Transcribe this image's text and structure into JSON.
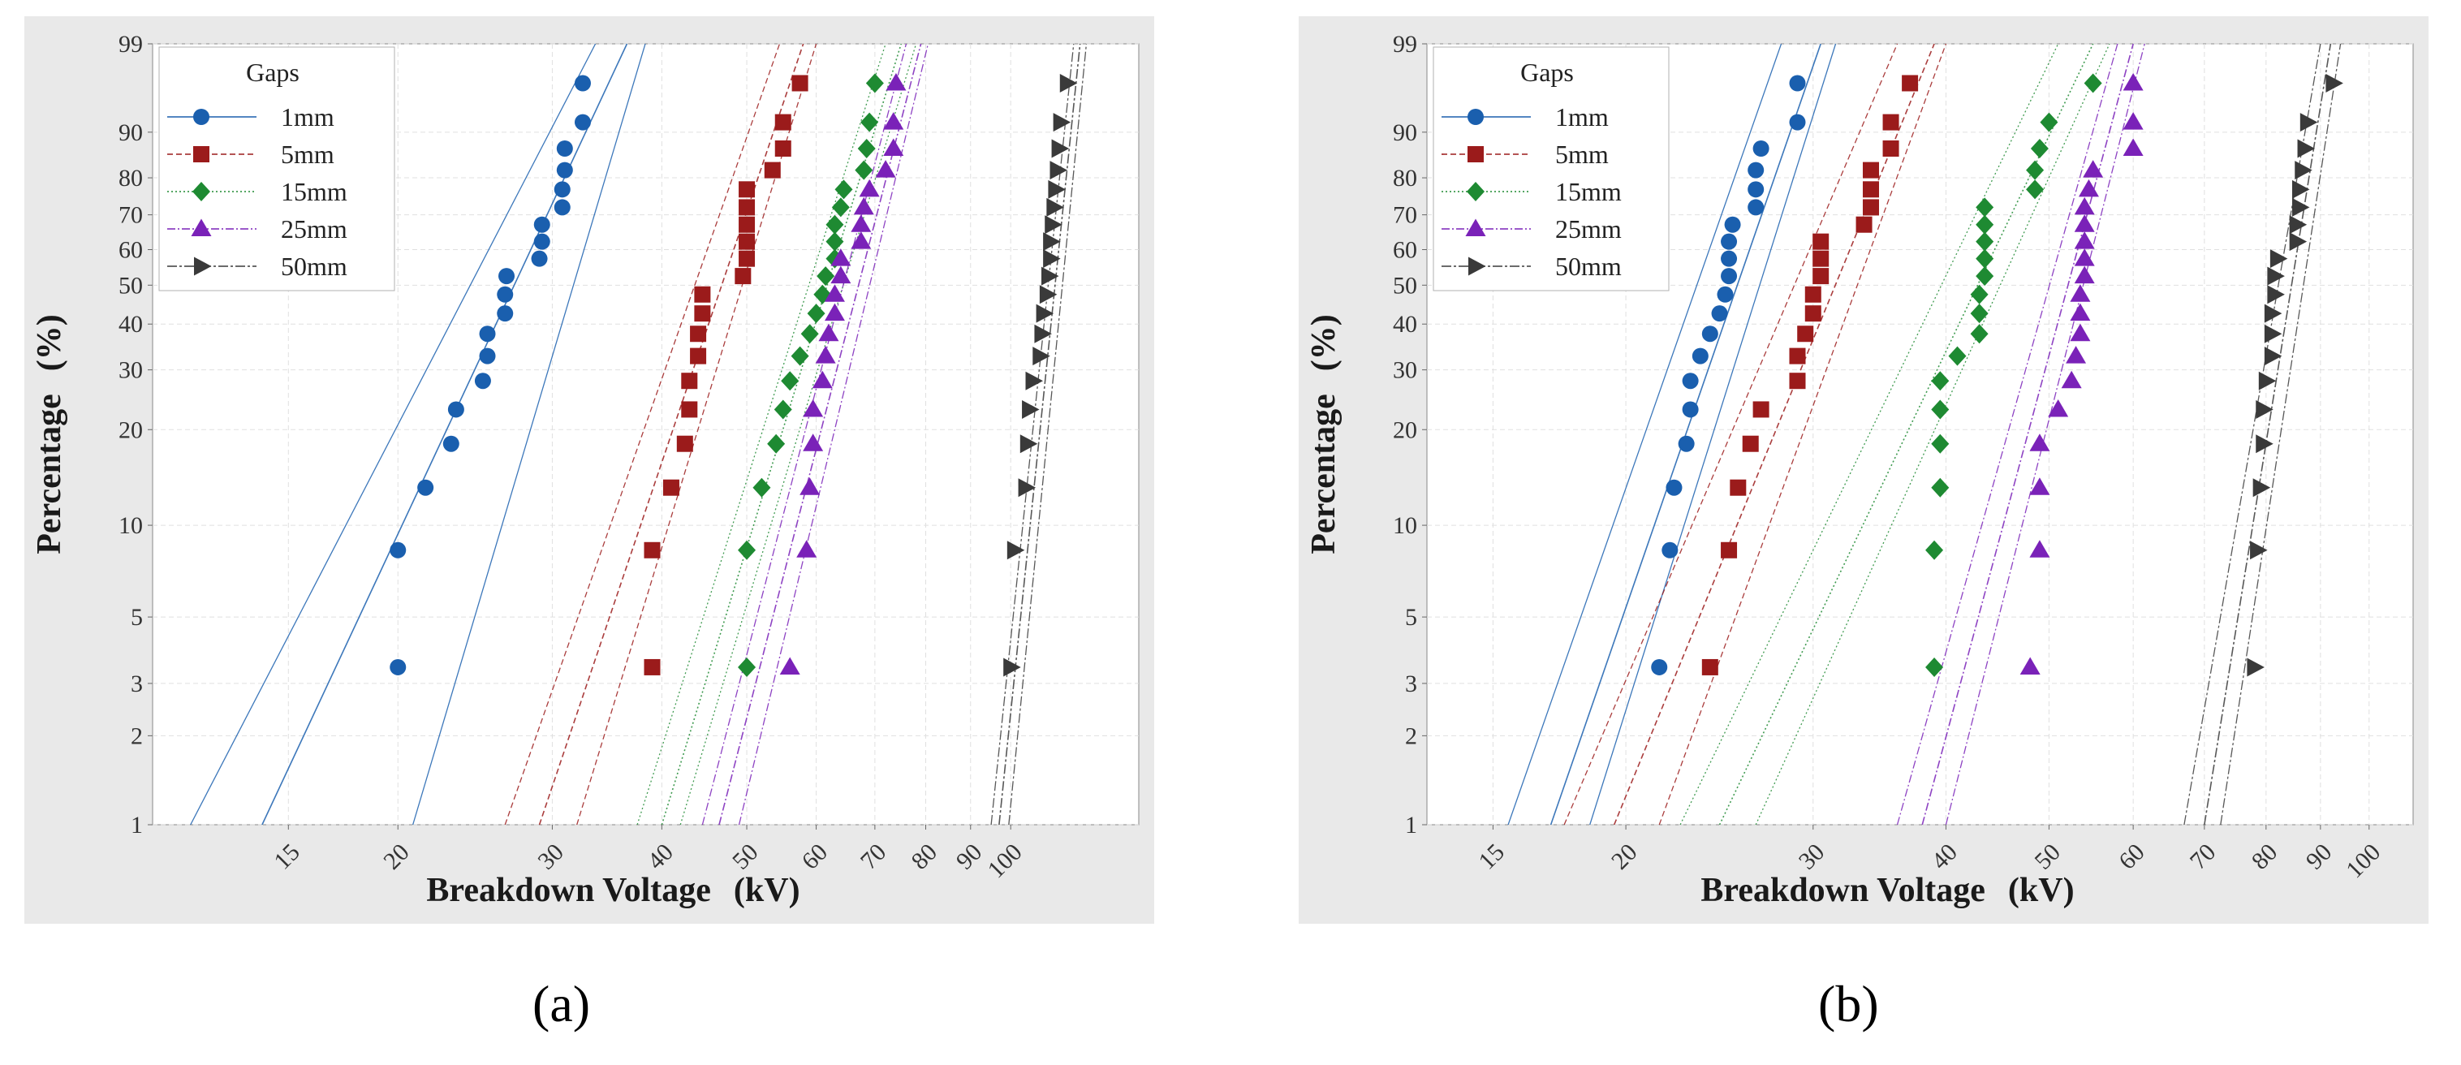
{
  "chart_data": [
    {
      "type": "scatter",
      "panel_label": "(a)",
      "xscale": "log",
      "yscale": "weibull-probability",
      "xlabel_main": "Breakdown Voltage",
      "xlabel_unit": "(kV)",
      "ylabel_main": "Percentage",
      "ylabel_unit": "(%)",
      "xlim": [
        10.5,
        140
      ],
      "ylim": [
        1,
        99
      ],
      "xticks": [
        15,
        20,
        30,
        40,
        50,
        60,
        70,
        80,
        90,
        100
      ],
      "xtick_labels": [
        "15",
        "20",
        "30",
        "40",
        "50",
        "60",
        "70",
        "80",
        "90",
        "100"
      ],
      "yticks": [
        1,
        2,
        3,
        5,
        10,
        20,
        30,
        40,
        50,
        60,
        70,
        80,
        90,
        99
      ],
      "ytick_labels": [
        "1",
        "2",
        "3",
        "5",
        "10",
        "20",
        "30",
        "40",
        "50",
        "60",
        "70",
        "80",
        "90",
        "99"
      ],
      "legend_title": "Gaps",
      "legend_position": "top-left",
      "series": [
        {
          "name": "1mm",
          "color": "#1a5fae",
          "marker": "circle",
          "dash": "",
          "x": [
            20.0,
            20.0,
            21.5,
            23.0,
            23.3,
            25.0,
            25.3,
            25.3,
            26.5,
            26.5,
            26.6,
            29.0,
            29.2,
            29.2,
            30.8,
            30.8,
            31.0,
            31.0,
            32.5,
            32.5
          ],
          "y": [
            3.4,
            8.3,
            13.2,
            18.1,
            23.0,
            27.9,
            32.8,
            37.7,
            42.6,
            47.5,
            52.5,
            57.4,
            62.3,
            67.2,
            72.1,
            77.0,
            81.9,
            86.8,
            91.7,
            96.6
          ],
          "fit": {
            "center": [
              [
                14.0,
                1
              ],
              [
                36.5,
                99
              ]
            ],
            "lower": [
              [
                11.6,
                1
              ],
              [
                33.6,
                99
              ]
            ],
            "upper": [
              [
                20.8,
                1
              ],
              [
                38.3,
                99
              ]
            ]
          }
        },
        {
          "name": "5mm",
          "color": "#9b1b1b",
          "marker": "square",
          "dash": "7,4",
          "x": [
            39.0,
            39.0,
            41.0,
            42.5,
            43.0,
            43.0,
            44.0,
            44.0,
            44.5,
            44.5,
            49.5,
            50.0,
            50.0,
            50.0,
            50.0,
            50.0,
            53.5,
            55.0,
            55.0,
            57.5
          ],
          "y": [
            3.4,
            8.3,
            13.2,
            18.1,
            23.0,
            27.9,
            32.8,
            37.7,
            42.6,
            47.5,
            52.5,
            57.4,
            62.3,
            67.2,
            72.1,
            77.0,
            81.9,
            86.8,
            91.7,
            96.6
          ],
          "fit": {
            "center": [
              [
                29.0,
                1
              ],
              [
                58.0,
                99
              ]
            ],
            "lower": [
              [
                26.5,
                1
              ],
              [
                54.5,
                99
              ]
            ],
            "upper": [
              [
                32.0,
                1
              ],
              [
                60.0,
                99
              ]
            ]
          }
        },
        {
          "name": "15mm",
          "color": "#1e8a32",
          "marker": "diamond",
          "dash": "2,3",
          "x": [
            50.0,
            50.0,
            52.0,
            54.0,
            55.0,
            56.0,
            57.5,
            59.0,
            60.0,
            61.0,
            61.5,
            63.0,
            63.0,
            63.0,
            64.0,
            64.5,
            68.0,
            68.5,
            69.0,
            70.0
          ],
          "y": [
            3.4,
            8.3,
            13.2,
            18.1,
            23.0,
            27.9,
            32.8,
            37.7,
            42.6,
            47.5,
            52.5,
            57.4,
            62.3,
            67.2,
            72.1,
            77.0,
            81.9,
            86.8,
            91.7,
            96.6
          ],
          "fit": {
            "center": [
              [
                40.0,
                1
              ],
              [
                75.0,
                99
              ]
            ],
            "lower": [
              [
                37.5,
                1
              ],
              [
                72.0,
                99
              ]
            ],
            "upper": [
              [
                42.0,
                1
              ],
              [
                78.0,
                99
              ]
            ]
          }
        },
        {
          "name": "25mm",
          "color": "#7a22b8",
          "marker": "triangle-up",
          "dash": "10,3,2,3",
          "x": [
            56.0,
            58.5,
            59.0,
            59.5,
            59.5,
            61.0,
            61.5,
            62.0,
            63.0,
            63.0,
            64.0,
            64.0,
            67.5,
            67.5,
            68.0,
            69.0,
            72.0,
            73.5,
            73.5,
            74.0
          ],
          "y": [
            3.4,
            8.3,
            13.2,
            18.1,
            23.0,
            27.9,
            32.8,
            37.7,
            42.6,
            47.5,
            52.5,
            57.4,
            62.3,
            67.2,
            72.1,
            77.0,
            81.9,
            86.8,
            91.7,
            96.6
          ],
          "fit": {
            "center": [
              [
                46.5,
                1
              ],
              [
                79.0,
                99
              ]
            ],
            "lower": [
              [
                44.5,
                1
              ],
              [
                76.0,
                99
              ]
            ],
            "upper": [
              [
                49.0,
                1
              ],
              [
                80.5,
                99
              ]
            ]
          }
        },
        {
          "name": "50mm",
          "color": "#3a3a3a",
          "marker": "triangle-right",
          "dash": "12,3,3,3",
          "x": [
            100.0,
            101.0,
            104.0,
            104.5,
            105.0,
            106.0,
            108.0,
            108.5,
            109.0,
            110.0,
            110.5,
            111.0,
            111.0,
            111.5,
            112.0,
            112.5,
            113.0,
            113.5,
            114.0,
            116.0
          ],
          "y": [
            3.4,
            8.3,
            13.2,
            18.1,
            23.0,
            27.9,
            32.8,
            37.7,
            42.6,
            47.5,
            52.5,
            57.4,
            62.3,
            67.2,
            72.1,
            77.0,
            81.9,
            86.8,
            91.7,
            96.6
          ],
          "fit": {
            "center": [
              [
                97.0,
                1
              ],
              [
                120.0,
                99
              ]
            ],
            "lower": [
              [
                95.0,
                1
              ],
              [
                118.0,
                99
              ]
            ],
            "upper": [
              [
                99.5,
                1
              ],
              [
                122.0,
                99
              ]
            ]
          }
        }
      ]
    },
    {
      "type": "scatter",
      "panel_label": "(b)",
      "xscale": "log",
      "yscale": "weibull-probability",
      "xlabel_main": "Breakdown Voltage",
      "xlabel_unit": "(kV)",
      "ylabel_main": "Percentage",
      "ylabel_unit": "(%)",
      "xlim": [
        13.0,
        110
      ],
      "ylim": [
        1,
        99
      ],
      "xticks": [
        15,
        20,
        30,
        40,
        50,
        60,
        70,
        80,
        90,
        100
      ],
      "xtick_labels": [
        "15",
        "20",
        "30",
        "40",
        "50",
        "60",
        "70",
        "80",
        "90",
        "100"
      ],
      "yticks": [
        1,
        2,
        3,
        5,
        10,
        20,
        30,
        40,
        50,
        60,
        70,
        80,
        90,
        99
      ],
      "ytick_labels": [
        "1",
        "2",
        "3",
        "5",
        "10",
        "20",
        "30",
        "40",
        "50",
        "60",
        "70",
        "80",
        "90",
        "99"
      ],
      "legend_title": "Gaps",
      "legend_position": "top-left",
      "series": [
        {
          "name": "1mm",
          "color": "#1a5fae",
          "marker": "circle",
          "dash": "",
          "x": [
            21.5,
            22.0,
            22.2,
            22.8,
            23.0,
            23.0,
            23.5,
            24.0,
            24.5,
            24.8,
            25.0,
            25.0,
            25.0,
            25.2,
            26.5,
            26.5,
            26.5,
            26.8,
            29.0,
            29.0
          ],
          "y": [
            3.4,
            8.3,
            13.2,
            18.1,
            23.0,
            27.9,
            32.8,
            37.7,
            42.6,
            47.5,
            52.5,
            57.4,
            62.3,
            67.2,
            72.1,
            77.0,
            81.9,
            86.8,
            91.7,
            96.6
          ],
          "fit": {
            "center": [
              [
                17.0,
                1
              ],
              [
                30.5,
                99
              ]
            ],
            "lower": [
              [
                15.5,
                1
              ],
              [
                28.0,
                99
              ]
            ],
            "upper": [
              [
                18.5,
                1
              ],
              [
                31.5,
                99
              ]
            ]
          }
        },
        {
          "name": "5mm",
          "color": "#9b1b1b",
          "marker": "square",
          "dash": "7,4",
          "x": [
            24.0,
            25.0,
            25.5,
            26.2,
            26.8,
            29.0,
            29.0,
            29.5,
            30.0,
            30.0,
            30.5,
            30.5,
            30.5,
            33.5,
            34.0,
            34.0,
            34.0,
            35.5,
            35.5,
            37.0
          ],
          "y": [
            3.4,
            8.3,
            13.2,
            18.1,
            23.0,
            27.9,
            32.8,
            37.7,
            42.6,
            47.5,
            52.5,
            57.4,
            62.3,
            67.2,
            72.1,
            77.0,
            81.9,
            86.8,
            91.7,
            96.6
          ],
          "fit": {
            "center": [
              [
                19.5,
                1
              ],
              [
                39.0,
                99
              ]
            ],
            "lower": [
              [
                17.5,
                1
              ],
              [
                36.0,
                99
              ]
            ],
            "upper": [
              [
                21.5,
                1
              ],
              [
                40.0,
                99
              ]
            ]
          }
        },
        {
          "name": "15mm",
          "color": "#1e8a32",
          "marker": "diamond",
          "dash": "2,3",
          "x": [
            39.0,
            39.0,
            39.5,
            39.5,
            39.5,
            39.5,
            41.0,
            43.0,
            43.0,
            43.0,
            43.5,
            43.5,
            43.5,
            43.5,
            43.5,
            48.5,
            48.5,
            49.0,
            50.0,
            55.0
          ],
          "y": [
            3.4,
            8.3,
            13.2,
            18.1,
            23.0,
            27.9,
            32.8,
            37.7,
            42.6,
            47.5,
            52.5,
            57.4,
            62.3,
            67.2,
            72.1,
            77.0,
            81.9,
            86.8,
            91.7,
            96.6
          ],
          "fit": {
            "center": [
              [
                24.5,
                1
              ],
              [
                55.0,
                99
              ]
            ],
            "lower": [
              [
                22.5,
                1
              ],
              [
                51.0,
                99
              ]
            ],
            "upper": [
              [
                26.5,
                1
              ],
              [
                57.0,
                99
              ]
            ]
          }
        },
        {
          "name": "25mm",
          "color": "#7a22b8",
          "marker": "triangle-up",
          "dash": "10,3,2,3",
          "x": [
            48.0,
            49.0,
            49.0,
            49.0,
            51.0,
            52.5,
            53.0,
            53.5,
            53.5,
            53.5,
            54.0,
            54.0,
            54.0,
            54.0,
            54.0,
            54.5,
            55.0,
            60.0,
            60.0,
            60.0
          ],
          "y": [
            3.4,
            8.3,
            13.2,
            18.1,
            23.0,
            27.9,
            32.8,
            37.7,
            42.6,
            47.5,
            52.5,
            57.4,
            62.3,
            67.2,
            72.1,
            77.0,
            81.9,
            86.8,
            91.7,
            96.6
          ],
          "fit": {
            "center": [
              [
                38.0,
                1
              ],
              [
                60.0,
                99
              ]
            ],
            "lower": [
              [
                36.0,
                1
              ],
              [
                58.0,
                99
              ]
            ],
            "upper": [
              [
                40.0,
                1
              ],
              [
                61.5,
                99
              ]
            ]
          }
        },
        {
          "name": "50mm",
          "color": "#3a3a3a",
          "marker": "triangle-right",
          "dash": "12,3,3,3",
          "x": [
            78.0,
            78.5,
            79.0,
            79.5,
            79.5,
            80.0,
            81.0,
            81.0,
            81.0,
            81.5,
            81.5,
            82.0,
            85.5,
            85.5,
            86.0,
            86.0,
            86.5,
            87.0,
            87.5,
            92.5
          ],
          "y": [
            3.4,
            8.3,
            13.2,
            18.1,
            23.0,
            27.9,
            32.8,
            37.7,
            42.6,
            47.5,
            52.5,
            57.4,
            62.3,
            67.2,
            72.1,
            77.0,
            81.9,
            86.8,
            91.7,
            96.6
          ],
          "fit": {
            "center": [
              [
                70.0,
                1
              ],
              [
                92.0,
                99
              ]
            ],
            "lower": [
              [
                67.0,
                1
              ],
              [
                90.0,
                99
              ]
            ],
            "upper": [
              [
                72.5,
                1
              ],
              [
                94.0,
                99
              ]
            ]
          }
        }
      ]
    }
  ]
}
